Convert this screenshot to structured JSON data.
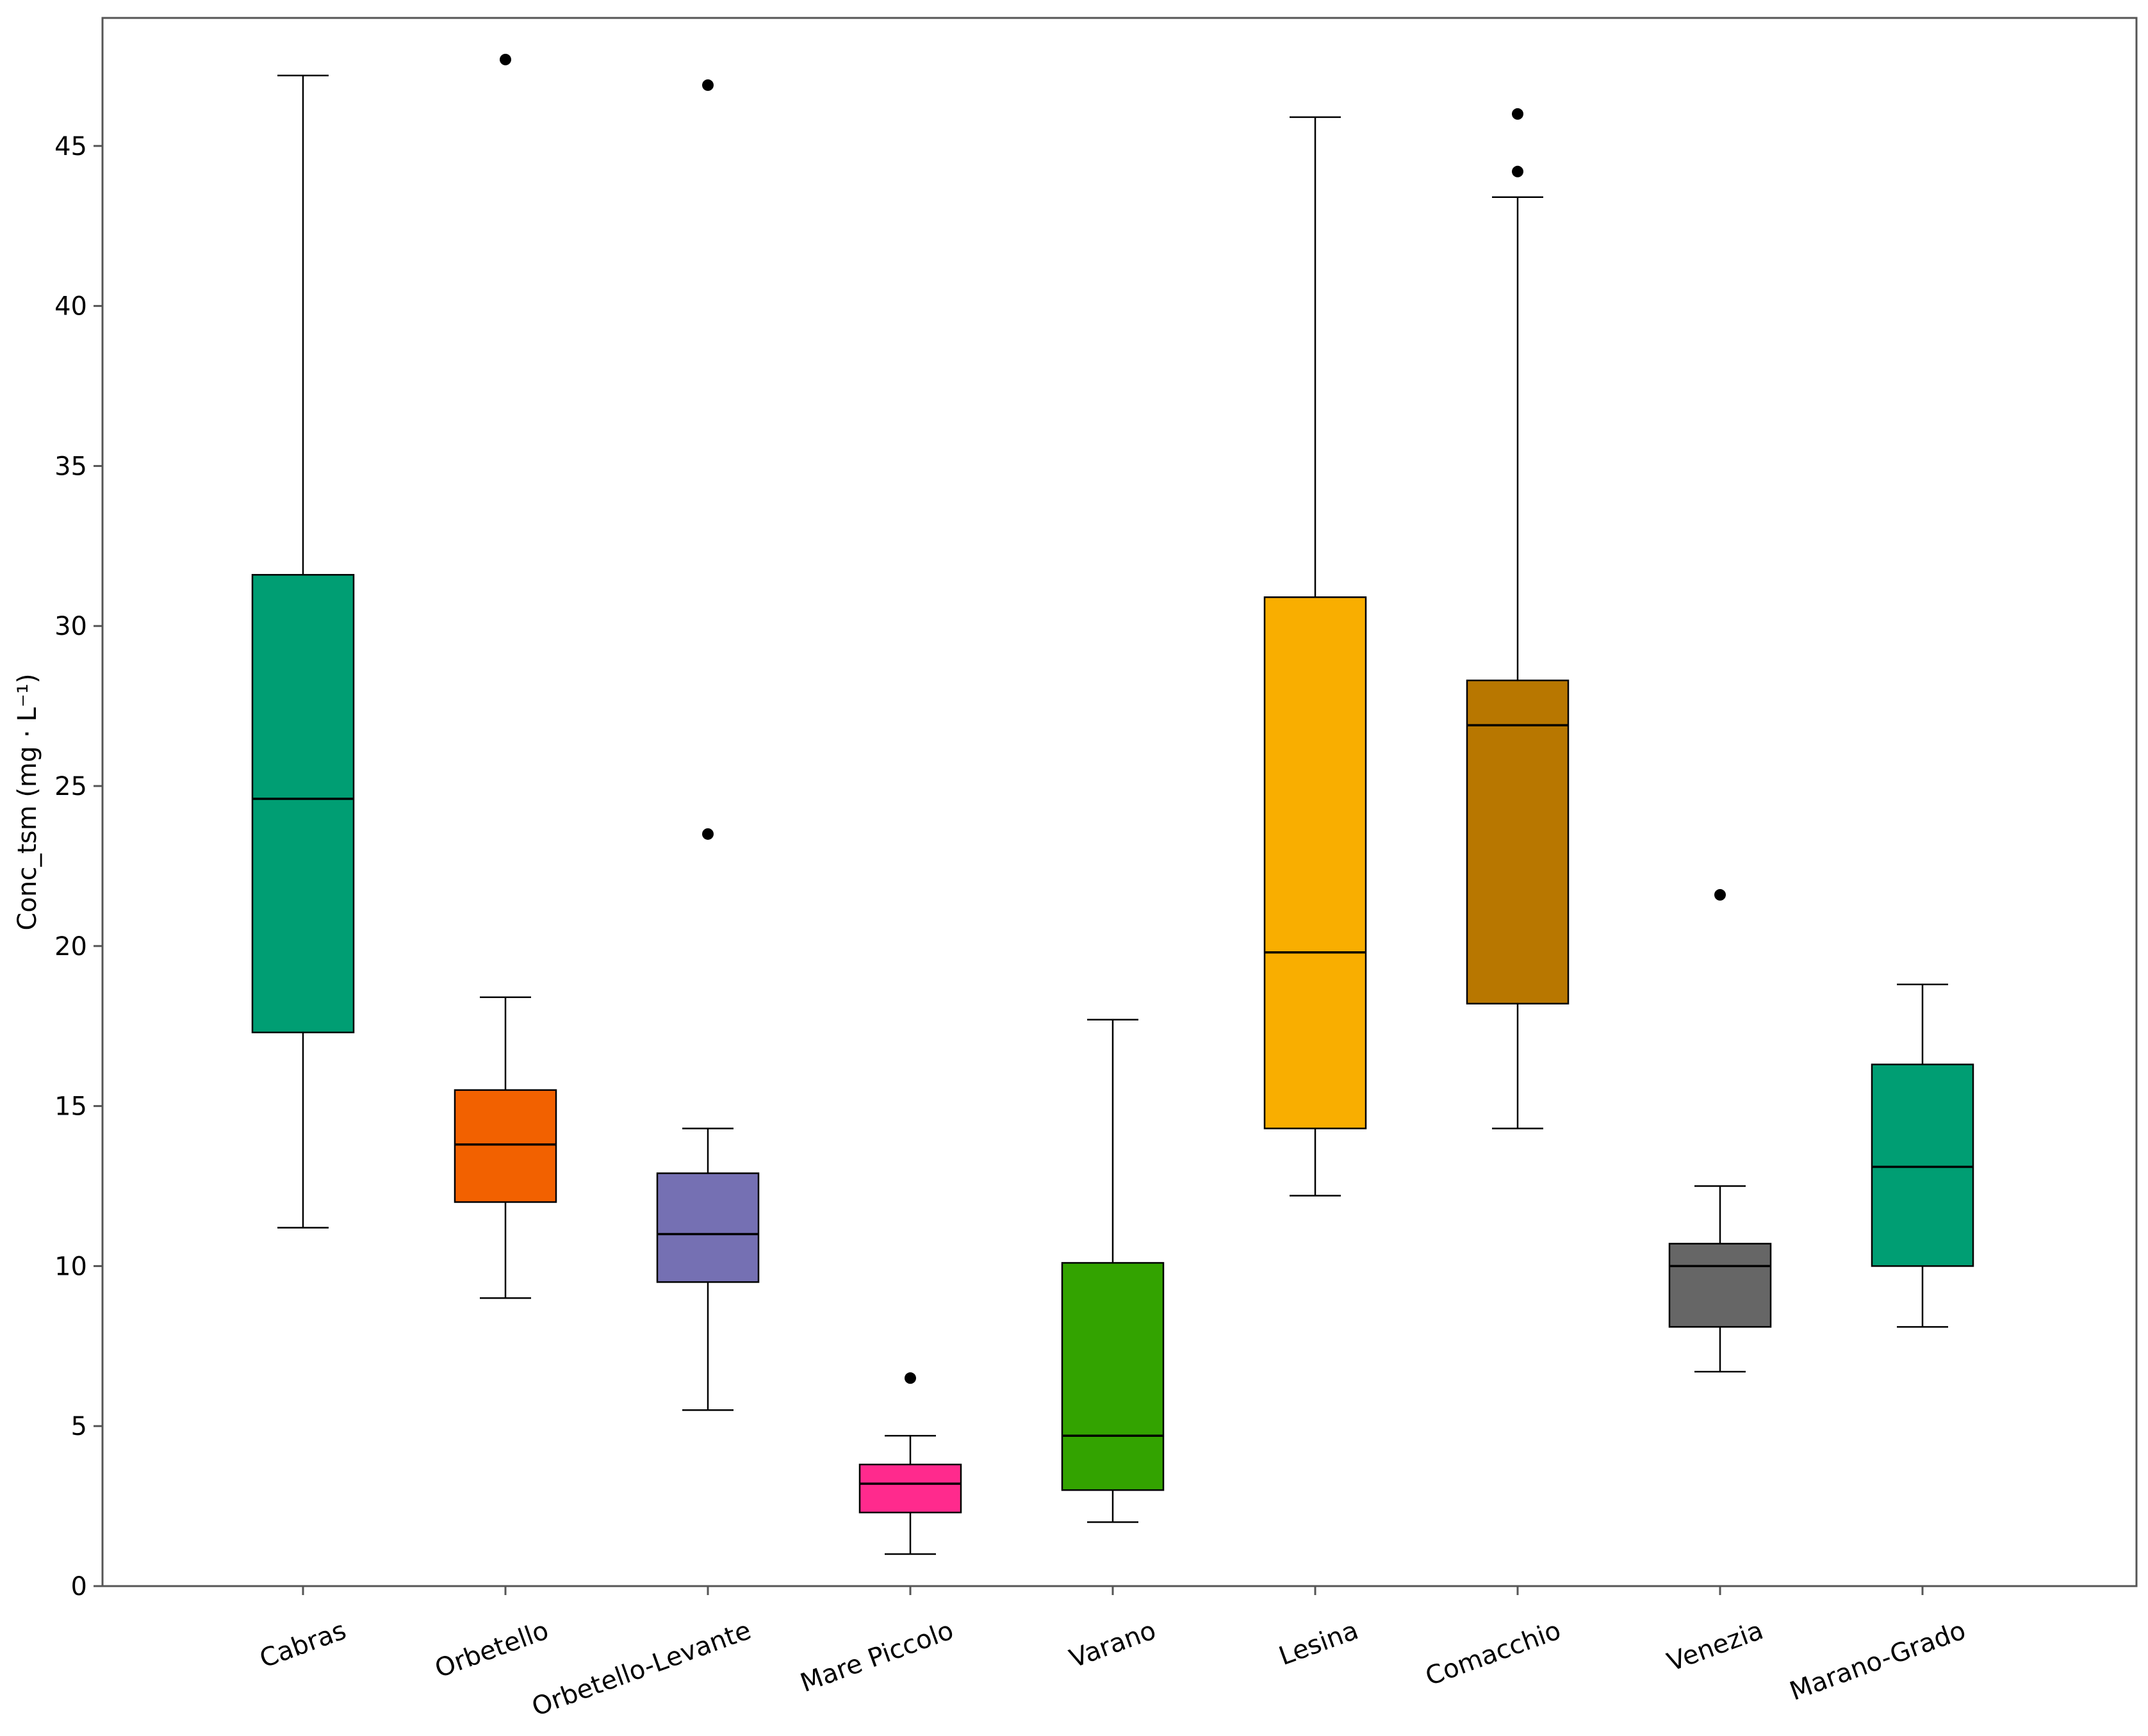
{
  "chart_data": {
    "type": "box",
    "title": "",
    "xlabel": "",
    "ylabel": "Conc_tsm (mg · L⁻¹)",
    "ylim": [
      0,
      49
    ],
    "yticks": [
      0,
      5,
      10,
      15,
      20,
      25,
      30,
      35,
      40,
      45
    ],
    "grid": false,
    "legend": "none",
    "categories": [
      "Cabras",
      "Orbetello",
      "Orbetello-Levante",
      "Mare Piccolo",
      "Varano",
      "Lesina",
      "Comacchio",
      "Venezia",
      "Marano-Grado"
    ],
    "boxes": [
      {
        "name": "Cabras",
        "color": "#009E73",
        "whisker_low": 11.2,
        "q1": 17.3,
        "median": 24.6,
        "q3": 31.6,
        "whisker_high": 47.2,
        "outliers": []
      },
      {
        "name": "Orbetello",
        "color": "#F26100",
        "whisker_low": 9.0,
        "q1": 12.0,
        "median": 13.8,
        "q3": 15.5,
        "whisker_high": 18.4,
        "outliers": [
          47.7
        ]
      },
      {
        "name": "Orbetello-Levante",
        "color": "#7570B3",
        "whisker_low": 5.5,
        "q1": 9.5,
        "median": 11.0,
        "q3": 12.9,
        "whisker_high": 14.3,
        "outliers": [
          23.5,
          46.9
        ]
      },
      {
        "name": "Mare Piccolo",
        "color": "#FF2A8D",
        "whisker_low": 1.0,
        "q1": 2.3,
        "median": 3.2,
        "q3": 3.8,
        "whisker_high": 4.7,
        "outliers": [
          6.5
        ]
      },
      {
        "name": "Varano",
        "color": "#33A300",
        "whisker_low": 2.0,
        "q1": 3.0,
        "median": 4.7,
        "q3": 10.1,
        "whisker_high": 17.7,
        "outliers": []
      },
      {
        "name": "Lesina",
        "color": "#F9AE00",
        "whisker_low": 12.2,
        "q1": 14.3,
        "median": 19.8,
        "q3": 30.9,
        "whisker_high": 45.9,
        "outliers": []
      },
      {
        "name": "Comacchio",
        "color": "#B87700",
        "whisker_low": 14.3,
        "q1": 18.2,
        "median": 26.9,
        "q3": 28.3,
        "whisker_high": 43.4,
        "outliers": [
          44.2,
          46.0
        ]
      },
      {
        "name": "Venezia",
        "color": "#666666",
        "whisker_low": 6.7,
        "q1": 8.1,
        "median": 10.0,
        "q3": 10.7,
        "whisker_high": 12.5,
        "outliers": [
          21.6
        ]
      },
      {
        "name": "Marano-Grado",
        "color": "#009E73",
        "whisker_low": 8.1,
        "q1": 10.0,
        "median": 13.1,
        "q3": 16.3,
        "whisker_high": 18.8,
        "outliers": []
      }
    ]
  }
}
